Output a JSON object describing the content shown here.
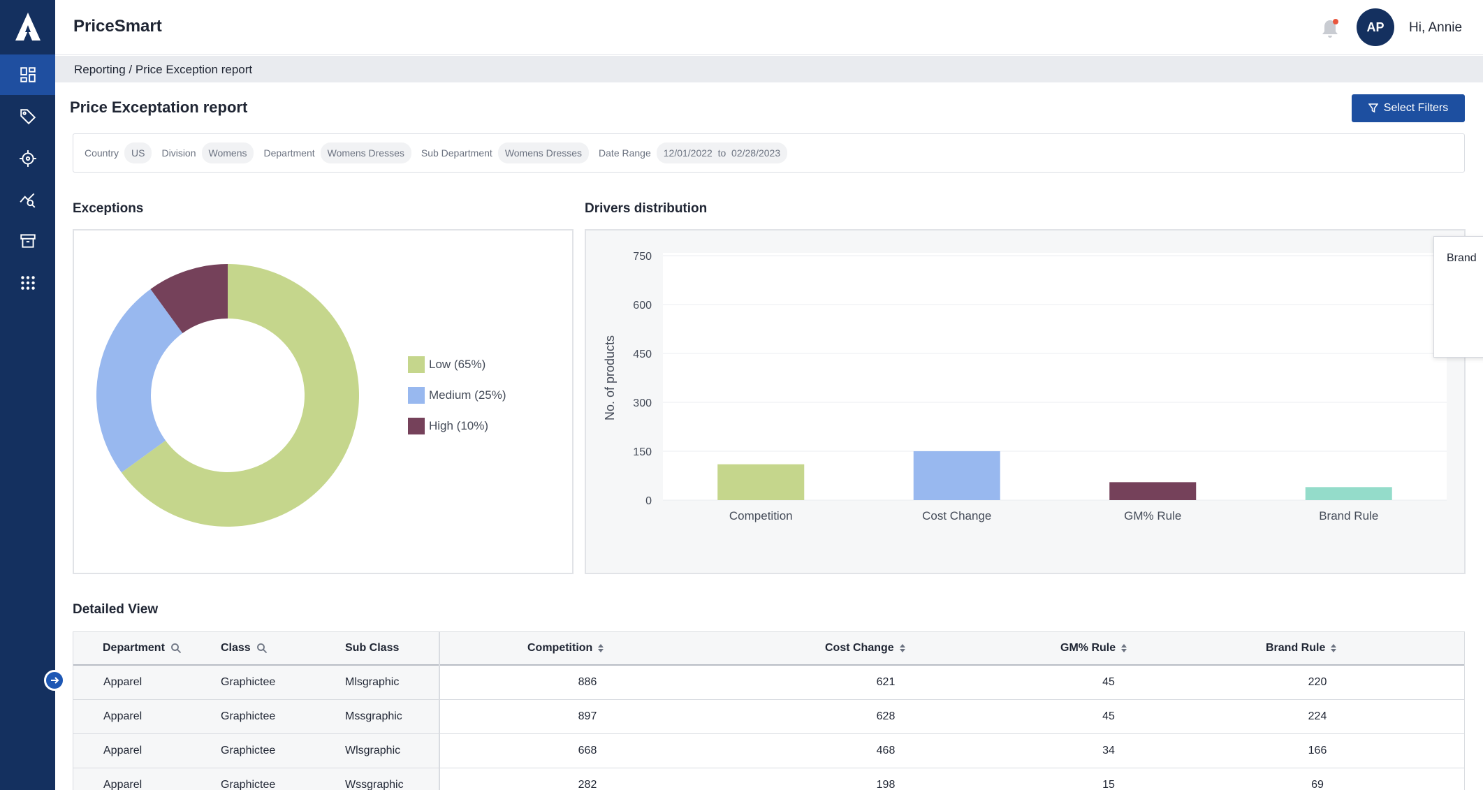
{
  "header": {
    "app_title": "PriceSmart",
    "avatar_initials": "AP",
    "greeting": "Hi, Annie"
  },
  "breadcrumb": "Reporting / Price Exception report",
  "page": {
    "title": "Price Exceptation report",
    "filter_button": "Select Filters"
  },
  "filters": [
    {
      "label": "Country",
      "value": "US"
    },
    {
      "label": "Division",
      "value": "Womens"
    },
    {
      "label": "Department",
      "value": "Womens Dresses"
    },
    {
      "label": "Sub Department",
      "value": "Womens Dresses"
    },
    {
      "label": "Date Range",
      "value": "12/01/2022  to  02/28/2023"
    }
  ],
  "exceptions": {
    "title": "Exceptions",
    "legend": [
      {
        "label": "Low (65%)",
        "color": "#c5d68c"
      },
      {
        "label": "Medium (25%)",
        "color": "#98b8ef"
      },
      {
        "label": "High (10%)",
        "color": "#75415a"
      }
    ]
  },
  "drivers": {
    "title": "Drivers distribution",
    "tooltip_text": "Brand"
  },
  "chart_data": [
    {
      "type": "pie",
      "variant": "donut",
      "categories": [
        "Low",
        "Medium",
        "High"
      ],
      "values": [
        65,
        25,
        10
      ],
      "colors": [
        "#c5d68c",
        "#98b8ef",
        "#75415a"
      ]
    },
    {
      "type": "bar",
      "categories": [
        "Competition",
        "Cost Change",
        "GM% Rule",
        "Brand Rule"
      ],
      "values": [
        110,
        150,
        55,
        40
      ],
      "colors": [
        "#c5d68c",
        "#98b8ef",
        "#75415a",
        "#94dcca"
      ],
      "ylabel": "No. of  products",
      "ylim": [
        0,
        750
      ],
      "yticks": [
        "0",
        "150",
        "300",
        "450",
        "600",
        "750"
      ],
      "grid": true
    }
  ],
  "detailed": {
    "title": "Detailed View",
    "columns": [
      "Department",
      "Class",
      "Sub Class",
      "Competition",
      "Cost Change",
      "GM% Rule",
      "Brand Rule"
    ],
    "rows": [
      [
        "Apparel",
        "Graphictee",
        "Mlsgraphic",
        "886",
        "621",
        "45",
        "220"
      ],
      [
        "Apparel",
        "Graphictee",
        "Mssgraphic",
        "897",
        "628",
        "45",
        "224"
      ],
      [
        "Apparel",
        "Graphictee",
        "Wlsgraphic",
        "668",
        "468",
        "34",
        "166"
      ],
      [
        "Apparel",
        "Graphictee",
        "Wssgraphic",
        "282",
        "198",
        "15",
        "69"
      ]
    ]
  },
  "icons": {
    "nav": [
      "dashboard-icon",
      "tag-icon",
      "target-icon",
      "analytics-icon",
      "archive-icon",
      "apps-grid-icon"
    ],
    "header": [
      "bell-icon"
    ],
    "table": [
      "search-icon",
      "sort-icon"
    ]
  }
}
